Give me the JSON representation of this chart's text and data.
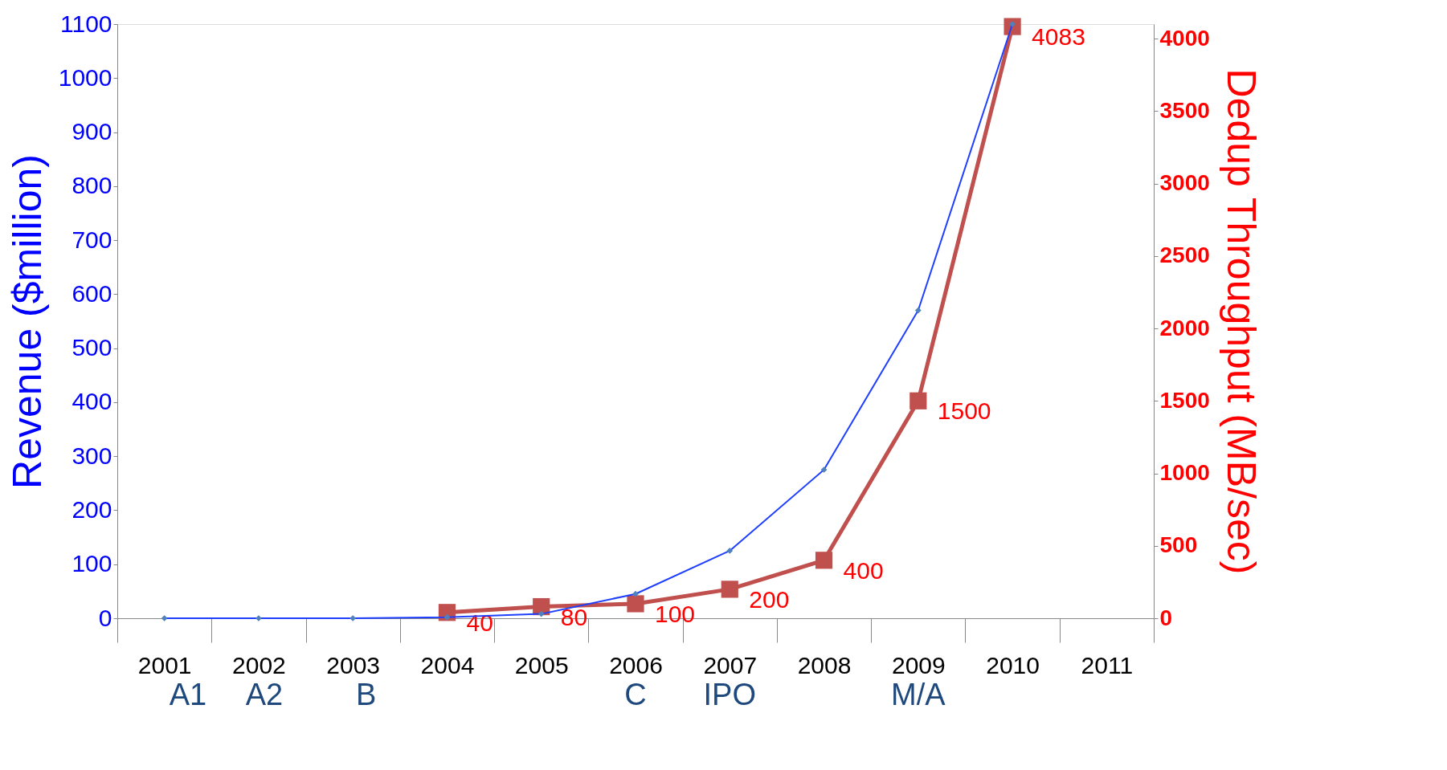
{
  "chart_data": {
    "type": "line",
    "categories": [
      "2001",
      "2002",
      "2003",
      "2004",
      "2005",
      "2006",
      "2007",
      "2008",
      "2009",
      "2010",
      "2011"
    ],
    "ylabel": "Revenue ($million)",
    "y2label": "Dedup Throughput (MB/sec)",
    "ylim": [
      0,
      1100
    ],
    "yticks": [
      0,
      100,
      200,
      300,
      400,
      500,
      600,
      700,
      800,
      900,
      1000,
      1100
    ],
    "y2lim": [
      0,
      4100
    ],
    "y2ticks": [
      0,
      500,
      1000,
      1500,
      2000,
      2500,
      3000,
      3500,
      4000
    ],
    "grid": false,
    "series": [
      {
        "color": "#1f3fff",
        "marker": "diamond",
        "values": [
          0,
          0,
          0,
          2,
          8,
          45,
          125,
          275,
          570,
          1100,
          null
        ]
      },
      {
        "color": "#c0504d",
        "marker": "square",
        "axis": "y2",
        "data_labels": true,
        "values": [
          null,
          null,
          null,
          40,
          80,
          100,
          200,
          400,
          1500,
          4083,
          null
        ]
      }
    ],
    "annotations": [
      "A1",
      "A2",
      "B",
      "C",
      "IPO",
      "M/A"
    ]
  }
}
